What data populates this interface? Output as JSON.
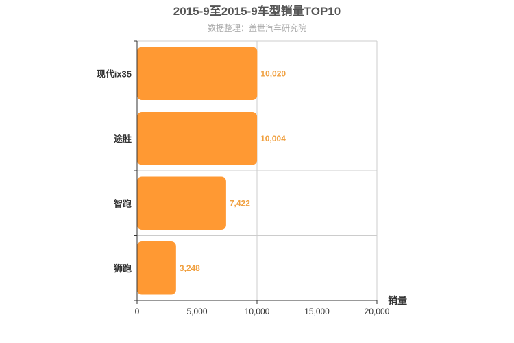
{
  "colors": {
    "bar": "#ff9933",
    "value_label": "#f0a040",
    "grid": "#cccccc",
    "axis": "#333333"
  },
  "chart_data": {
    "type": "bar",
    "orientation": "horizontal",
    "title": "2015-9至2015-9车型销量TOP10",
    "subtitle": "数据整理：盖世汽车研究院",
    "xlabel": "销量",
    "ylabel": "",
    "categories": [
      "现代ix35",
      "途胜",
      "智跑",
      "狮跑"
    ],
    "values": [
      10020,
      10004,
      7422,
      3248
    ],
    "value_labels": [
      "10,020",
      "10,004",
      "7,422",
      "3,248"
    ],
    "xlim": [
      0,
      20000
    ],
    "x_ticks": [
      0,
      5000,
      10000,
      15000,
      20000
    ],
    "x_tick_labels": [
      "0",
      "5,000",
      "10,000",
      "15,000",
      "20,000"
    ],
    "grid": true,
    "legend": "none"
  }
}
